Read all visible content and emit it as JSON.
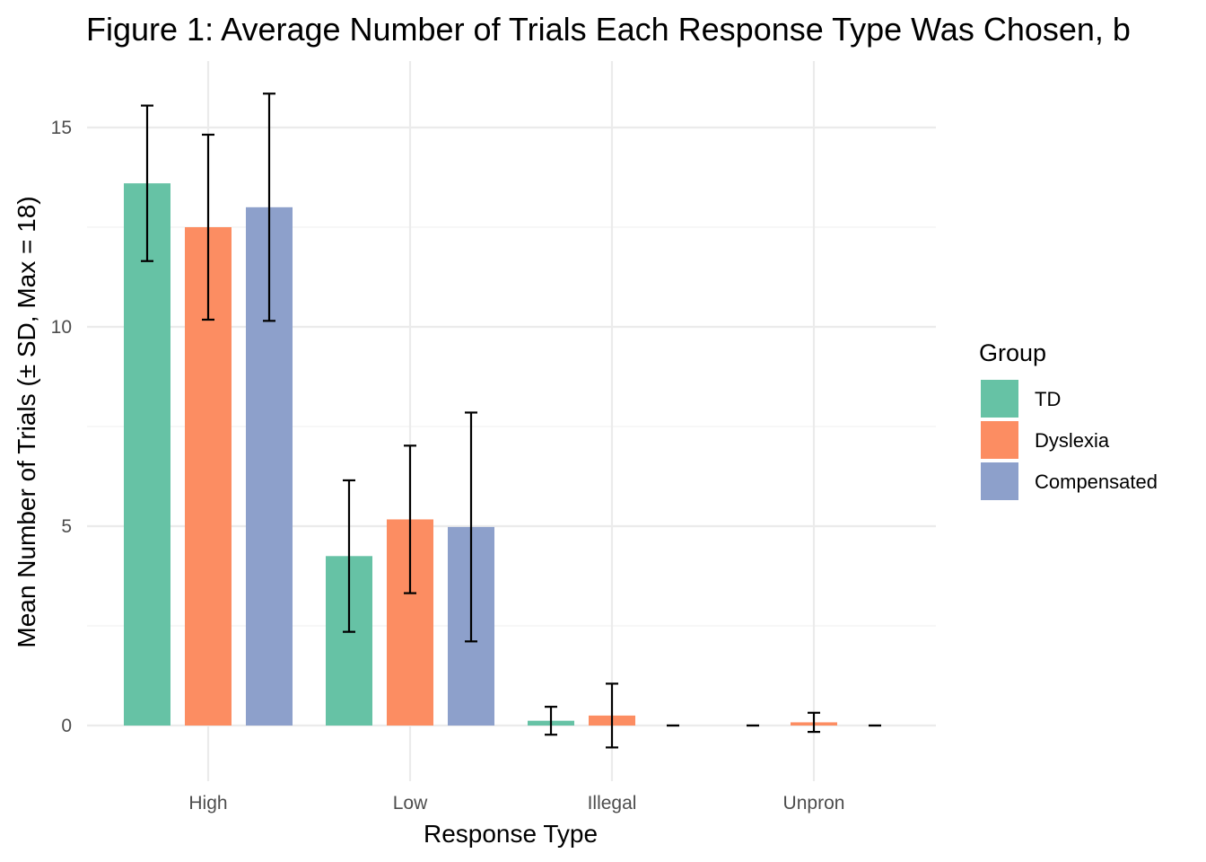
{
  "chart_data": {
    "type": "bar",
    "title": "Figure 1: Average Number of Trials Each Response Type Was Chosen, b",
    "xlabel": "Response Type",
    "ylabel": "Mean Number of Trials (± SD, Max = 18)",
    "categories": [
      "High",
      "Low",
      "Illegal",
      "Unpron"
    ],
    "ylim": [
      -1.3,
      16.7
    ],
    "yticks": [
      0,
      5,
      10,
      15
    ],
    "grid": true,
    "legend": {
      "title": "Group",
      "position": "right"
    },
    "series": [
      {
        "name": "TD",
        "color": "#66c2a5",
        "values": [
          13.6,
          4.25,
          0.12,
          0.0
        ],
        "sd": [
          1.95,
          1.9,
          0.35,
          0.0
        ]
      },
      {
        "name": "Dyslexia",
        "color": "#fc8d62",
        "values": [
          12.5,
          5.17,
          0.25,
          0.08
        ],
        "sd": [
          2.32,
          1.85,
          0.8,
          0.24
        ]
      },
      {
        "name": "Compensated",
        "color": "#8da0cb",
        "values": [
          13.0,
          4.98,
          0.0,
          0.0
        ],
        "sd": [
          2.85,
          2.87,
          0.0,
          0.0
        ]
      }
    ]
  }
}
